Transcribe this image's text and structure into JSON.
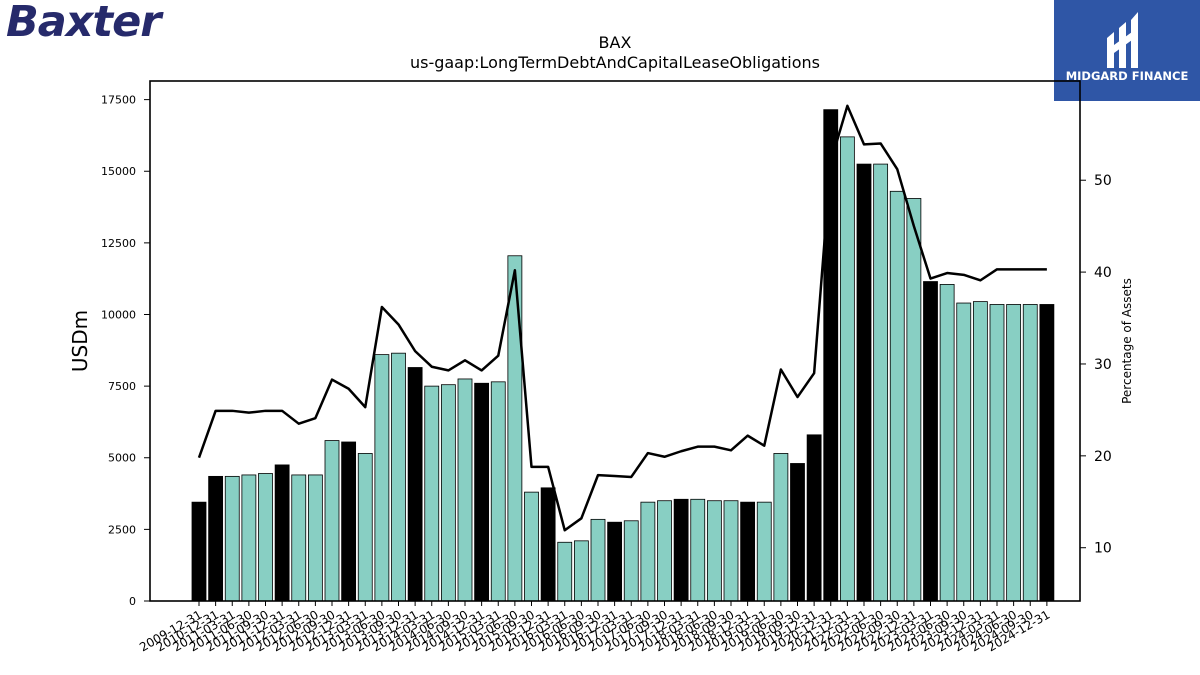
{
  "brand": {
    "left_logo": "Baxter",
    "right_logo": "MIDGARD FINANCE",
    "logo_bg": "#2f56a6",
    "baxter_color": "#262a6b"
  },
  "colors": {
    "bar_fill": "#88cfc3",
    "bar_highlight": "#000000",
    "line": "#000000"
  },
  "chart_data": {
    "type": "bar",
    "title": "BAX",
    "subtitle": "us-gaap:LongTermDebtAndCapitalLeaseObligations",
    "ylabel": "USDm",
    "y2label": "Percentage of Assets",
    "ylim": [
      0,
      18150
    ],
    "y2lim": [
      4.2,
      60.8
    ],
    "yticks": [
      0,
      2500,
      5000,
      7500,
      10000,
      12500,
      15000,
      17500
    ],
    "y2ticks": [
      10,
      20,
      30,
      40,
      50
    ],
    "categories": [
      "2009-12-31",
      "2010-12-31",
      "2011-03-31",
      "2011-06-30",
      "2011-09-30",
      "2011-12-31",
      "2012-03-31",
      "2012-06-30",
      "2012-09-30",
      "2012-12-31",
      "2013-03-31",
      "2013-06-30",
      "2013-09-30",
      "2013-12-31",
      "2014-03-31",
      "2014-06-30",
      "2014-09-30",
      "2014-12-31",
      "2015-03-31",
      "2015-06-30",
      "2015-09-30",
      "2015-12-31",
      "2016-03-31",
      "2016-06-30",
      "2016-09-30",
      "2016-12-31",
      "2017-03-31",
      "2017-06-30",
      "2017-09-30",
      "2017-12-31",
      "2018-03-31",
      "2018-06-30",
      "2018-09-30",
      "2018-12-31",
      "2019-03-31",
      "2019-06-30",
      "2019-09-30",
      "2019-12-31",
      "2020-12-31",
      "2021-12-31",
      "2022-03-31",
      "2022-06-30",
      "2022-09-30",
      "2022-12-31",
      "2023-03-31",
      "2023-06-30",
      "2023-09-30",
      "2023-12-31",
      "2024-03-31",
      "2024-06-30",
      "2024-09-30",
      "2024-12-31"
    ],
    "series": [
      {
        "type": "bar",
        "values": [
          3450,
          4350,
          4350,
          4400,
          4450,
          4750,
          4400,
          4400,
          5600,
          5550,
          5150,
          8600,
          8650,
          8150,
          7500,
          7550,
          7750,
          7600,
          7650,
          12050,
          3800,
          3950,
          2050,
          2100,
          2850,
          2750,
          2800,
          3450,
          3500,
          3550,
          3550,
          3500,
          3500,
          3450,
          3450,
          5150,
          4800,
          5800,
          17150,
          16200,
          15250,
          15250,
          14300,
          14050,
          11150,
          11050,
          10400,
          10450,
          10350,
          10350,
          10350,
          10350
        ],
        "highlight": [
          true,
          true,
          false,
          false,
          false,
          true,
          false,
          false,
          false,
          true,
          false,
          false,
          false,
          true,
          false,
          false,
          false,
          true,
          false,
          false,
          false,
          true,
          false,
          false,
          false,
          true,
          false,
          false,
          false,
          true,
          false,
          false,
          false,
          true,
          false,
          false,
          true,
          true,
          true,
          false,
          true,
          false,
          false,
          false,
          true,
          false,
          false,
          false,
          false,
          false,
          false,
          true
        ]
      },
      {
        "type": "line",
        "axis": "y2",
        "values": [
          19.8,
          24.9,
          24.9,
          24.7,
          24.9,
          24.9,
          23.5,
          24.1,
          28.3,
          27.3,
          25.3,
          36.2,
          34.3,
          31.4,
          29.7,
          29.3,
          30.4,
          29.3,
          30.9,
          40.2,
          18.8,
          18.8,
          11.9,
          13.2,
          17.9,
          17.8,
          17.7,
          20.3,
          19.9,
          20.5,
          21.0,
          21.0,
          20.6,
          22.2,
          21.1,
          29.4,
          26.4,
          29.0,
          52.0,
          58.1,
          53.9,
          54.0,
          51.2,
          45.0,
          39.3,
          39.9,
          39.7,
          39.1,
          40.3,
          40.3,
          40.3,
          40.3
        ]
      }
    ]
  }
}
